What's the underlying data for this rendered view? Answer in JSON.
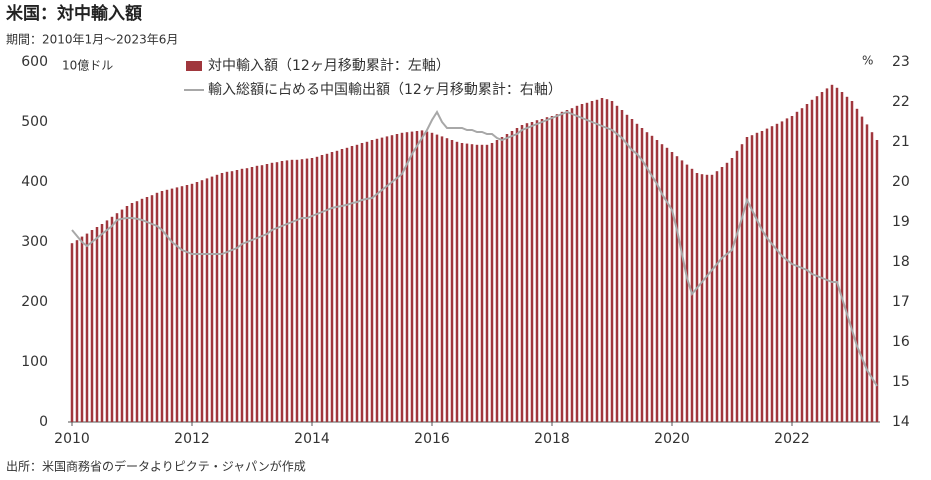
{
  "chart_data": {
    "type": "bar",
    "title": "米国：対中輸入額",
    "subtitle": "期間：2010年1月～2023年6月",
    "y_unit": "10億ドル",
    "y2_unit": "%",
    "source": "出所：米国商務省のデータよりピクテ・ジャパンが作成",
    "categories": [
      "2010",
      null,
      null,
      null,
      null,
      null,
      null,
      null,
      null,
      null,
      null,
      null,
      null,
      null,
      null,
      null,
      null,
      null,
      null,
      null,
      null,
      null,
      null,
      null,
      "2012",
      null,
      null,
      null,
      null,
      null,
      null,
      null,
      null,
      null,
      null,
      null,
      null,
      null,
      null,
      null,
      null,
      null,
      null,
      null,
      null,
      null,
      null,
      null,
      "2014",
      null,
      null,
      null,
      null,
      null,
      null,
      null,
      null,
      null,
      null,
      null,
      null,
      null,
      null,
      null,
      null,
      null,
      null,
      null,
      null,
      null,
      null,
      null,
      "2016",
      null,
      null,
      null,
      null,
      null,
      null,
      null,
      null,
      null,
      null,
      null,
      null,
      null,
      null,
      null,
      null,
      null,
      null,
      null,
      null,
      null,
      null,
      null,
      "2018",
      null,
      null,
      null,
      null,
      null,
      null,
      null,
      null,
      null,
      null,
      null,
      null,
      null,
      null,
      null,
      null,
      null,
      null,
      null,
      null,
      null,
      null,
      null,
      "2020",
      null,
      null,
      null,
      null,
      null,
      null,
      null,
      null,
      null,
      null,
      null,
      null,
      null,
      null,
      null,
      null,
      null,
      null,
      null,
      null,
      null,
      null,
      null,
      "2022",
      null,
      null,
      null,
      null,
      null,
      null,
      null,
      null,
      null,
      null,
      null,
      null,
      null,
      null,
      null,
      null,
      null
    ],
    "series": [
      {
        "name": "対中輸入額（12ヶ月移動累計：左軸）",
        "type": "bar",
        "color": "#a0373d",
        "values": [
          298,
          303,
          309,
          314,
          320,
          325,
          330,
          336,
          342,
          348,
          354,
          360,
          365,
          368,
          372,
          375,
          378,
          382,
          385,
          387,
          389,
          391,
          393,
          395,
          397,
          400,
          403,
          406,
          409,
          412,
          415,
          417,
          418,
          420,
          422,
          423,
          425,
          427,
          428,
          430,
          432,
          433,
          435,
          436,
          437,
          437,
          438,
          439,
          440,
          442,
          445,
          447,
          450,
          452,
          455,
          457,
          460,
          462,
          465,
          467,
          470,
          472,
          474,
          476,
          478,
          480,
          482,
          483,
          484,
          485,
          486,
          484,
          482,
          479,
          476,
          473,
          470,
          467,
          465,
          464,
          463,
          462,
          462,
          462,
          465,
          470,
          475,
          480,
          485,
          490,
          495,
          498,
          500,
          503,
          505,
          508,
          510,
          513,
          517,
          520,
          523,
          527,
          530,
          532,
          535,
          537,
          540,
          538,
          535,
          527,
          520,
          512,
          505,
          497,
          490,
          483,
          477,
          470,
          463,
          457,
          450,
          443,
          436,
          429,
          422,
          415,
          413,
          412,
          412,
          418,
          425,
          432,
          440,
          452,
          463,
          475,
          478,
          482,
          485,
          489,
          493,
          497,
          501,
          506,
          510,
          517,
          523,
          530,
          537,
          543,
          550,
          556,
          562,
          557,
          550,
          542,
          535,
          522,
          509,
          496,
          483,
          470
        ]
      },
      {
        "name": "輸入総額に占める中国輸出額（12ヶ月移動累計：右軸）",
        "type": "line",
        "axis": "y2",
        "color": "#a8a8a8",
        "values": [
          18.8,
          18.65,
          18.5,
          18.4,
          18.5,
          18.6,
          18.7,
          18.8,
          18.9,
          19.05,
          19.08,
          19.1,
          19.1,
          19.08,
          19.05,
          19.0,
          18.95,
          18.9,
          18.8,
          18.65,
          18.5,
          18.4,
          18.3,
          18.25,
          18.2,
          18.2,
          18.2,
          18.2,
          18.2,
          18.2,
          18.2,
          18.25,
          18.3,
          18.35,
          18.45,
          18.5,
          18.55,
          18.6,
          18.65,
          18.7,
          18.8,
          18.85,
          18.9,
          18.95,
          19.0,
          19.05,
          19.1,
          19.1,
          19.15,
          19.2,
          19.25,
          19.3,
          19.35,
          19.38,
          19.4,
          19.43,
          19.47,
          19.5,
          19.55,
          19.58,
          19.6,
          19.7,
          19.8,
          19.9,
          20.0,
          20.1,
          20.2,
          20.45,
          20.7,
          20.9,
          21.1,
          21.3,
          21.55,
          21.75,
          21.5,
          21.35,
          21.35,
          21.35,
          21.35,
          21.3,
          21.3,
          21.25,
          21.25,
          21.2,
          21.2,
          21.1,
          21.05,
          21.1,
          21.15,
          21.2,
          21.3,
          21.35,
          21.4,
          21.45,
          21.5,
          21.55,
          21.6,
          21.65,
          21.7,
          21.75,
          21.7,
          21.65,
          21.6,
          21.55,
          21.5,
          21.45,
          21.4,
          21.35,
          21.3,
          21.2,
          21.1,
          20.95,
          20.8,
          20.7,
          20.55,
          20.35,
          20.15,
          19.95,
          19.7,
          19.5,
          19.3,
          18.8,
          18.2,
          17.6,
          17.2,
          17.35,
          17.5,
          17.65,
          17.8,
          17.95,
          18.1,
          18.2,
          18.3,
          18.7,
          19.1,
          19.55,
          19.3,
          19.05,
          18.8,
          18.6,
          18.45,
          18.3,
          18.15,
          18.05,
          17.95,
          17.9,
          17.85,
          17.8,
          17.7,
          17.65,
          17.6,
          17.55,
          17.5,
          17.5,
          17.1,
          16.7,
          16.3,
          15.9,
          15.6,
          15.3,
          15.1,
          14.9
        ]
      }
    ],
    "ylim": [
      0,
      600
    ],
    "yticks": [
      0,
      100,
      200,
      300,
      400,
      500,
      600
    ],
    "y2lim": [
      14,
      23
    ],
    "y2ticks": [
      14,
      15,
      16,
      17,
      18,
      19,
      20,
      21,
      22,
      23
    ],
    "grid": false
  }
}
